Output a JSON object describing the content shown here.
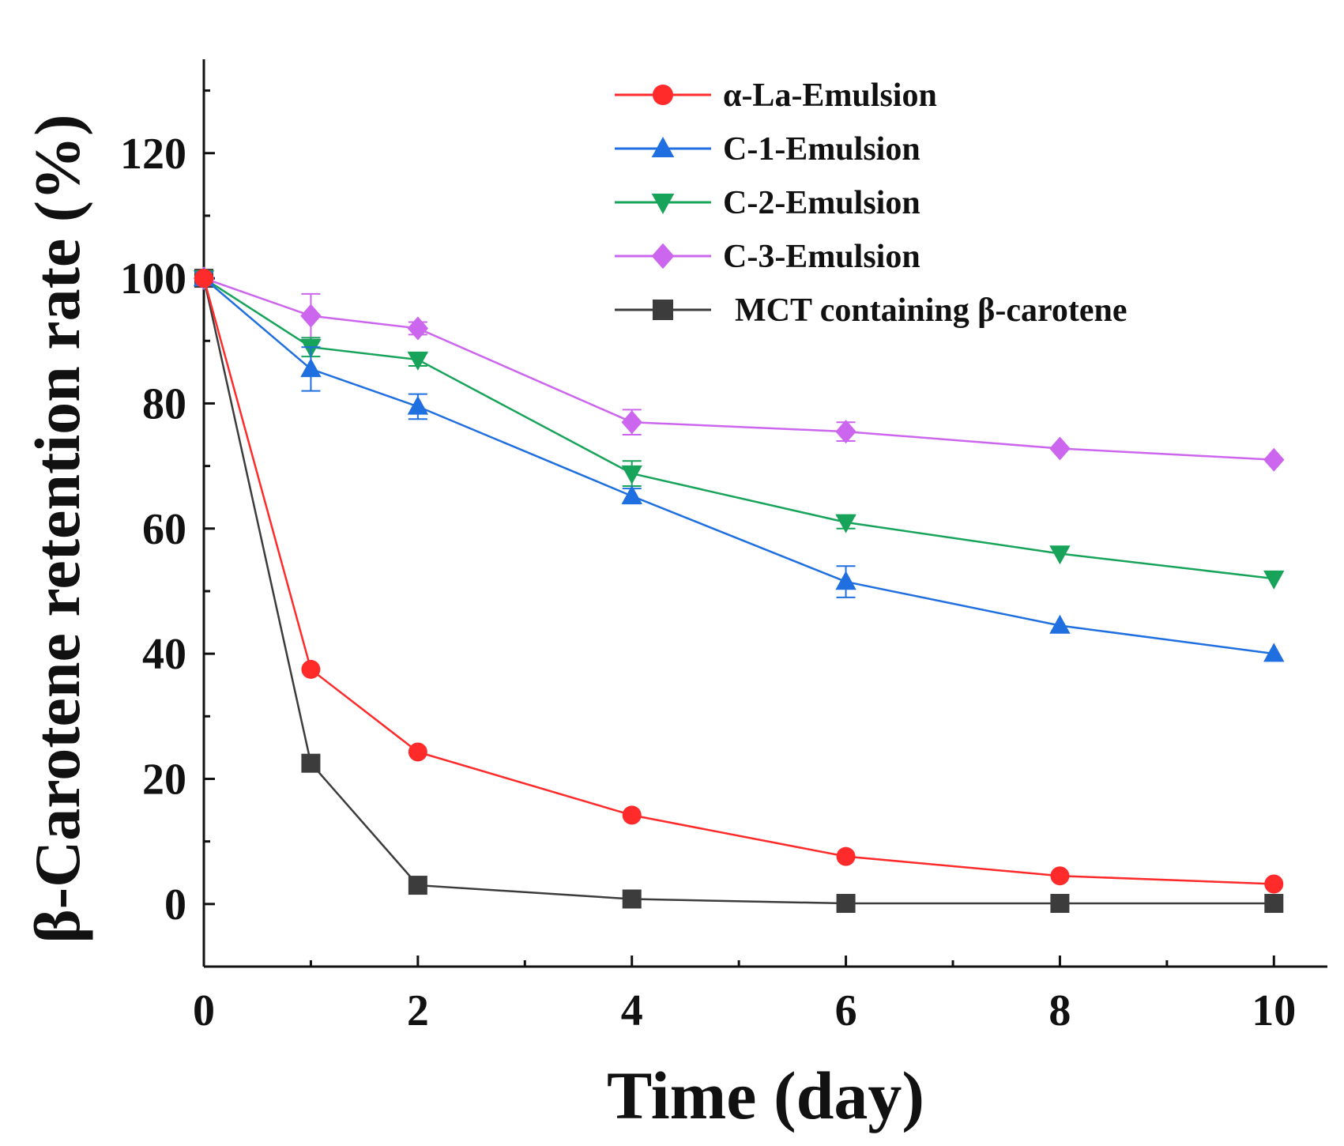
{
  "chart_data": {
    "type": "line",
    "title": "",
    "xlabel": "Time (day)",
    "ylabel": "β-Carotene retention rate (%)",
    "xlim": [
      0,
      10.5
    ],
    "ylim": [
      -10,
      135
    ],
    "xticks": [
      0,
      2,
      4,
      6,
      8,
      10
    ],
    "yticks": [
      0,
      20,
      40,
      60,
      80,
      100,
      120
    ],
    "grid": false,
    "legend_position": "top-right",
    "series": [
      {
        "name": "α-La-Emulsion",
        "color": "#ff2a2a",
        "marker": "circle",
        "x": [
          0,
          1,
          2,
          4,
          6,
          8,
          10
        ],
        "y": [
          100,
          37.5,
          24.3,
          14.2,
          7.6,
          4.5,
          3.2
        ],
        "err": [
          0.8,
          0.8,
          0.8,
          0.6,
          0.6,
          0.5,
          0.5
        ]
      },
      {
        "name": "C-1-Emulsion",
        "color": "#1f6fe0",
        "marker": "triangle-up",
        "x": [
          0,
          1,
          2,
          4,
          6,
          8,
          10
        ],
        "y": [
          100,
          85.5,
          79.5,
          65.2,
          51.5,
          44.5,
          40.0
        ],
        "err": [
          1.0,
          3.5,
          2.0,
          1.2,
          2.5,
          0.8,
          0.8
        ]
      },
      {
        "name": "C-2-Emulsion",
        "color": "#17a35a",
        "marker": "triangle-down",
        "x": [
          0,
          1,
          2,
          4,
          6,
          8,
          10
        ],
        "y": [
          100,
          89.0,
          87.0,
          68.8,
          61.0,
          56.0,
          52.0
        ],
        "err": [
          1.0,
          1.5,
          1.0,
          2.0,
          1.0,
          0.8,
          0.8
        ]
      },
      {
        "name": "C-3-Emulsion",
        "color": "#cc66ee",
        "marker": "diamond",
        "x": [
          0,
          1,
          2,
          4,
          6,
          8,
          10
        ],
        "y": [
          100,
          94.0,
          92.0,
          77.0,
          75.5,
          72.8,
          71.0
        ],
        "err": [
          1.0,
          3.5,
          1.0,
          2.0,
          1.5,
          0.8,
          0.6
        ]
      },
      {
        "name": "MCT containing β-carotene",
        "color": "#3c3c3c",
        "marker": "square",
        "x": [
          0,
          1,
          2,
          4,
          6,
          8,
          10
        ],
        "y": [
          100,
          22.5,
          3.0,
          0.8,
          0.1,
          0.1,
          0.1
        ],
        "err": [
          0.8,
          0.8,
          0.5,
          0.3,
          0.2,
          0.2,
          0.2
        ]
      }
    ]
  }
}
